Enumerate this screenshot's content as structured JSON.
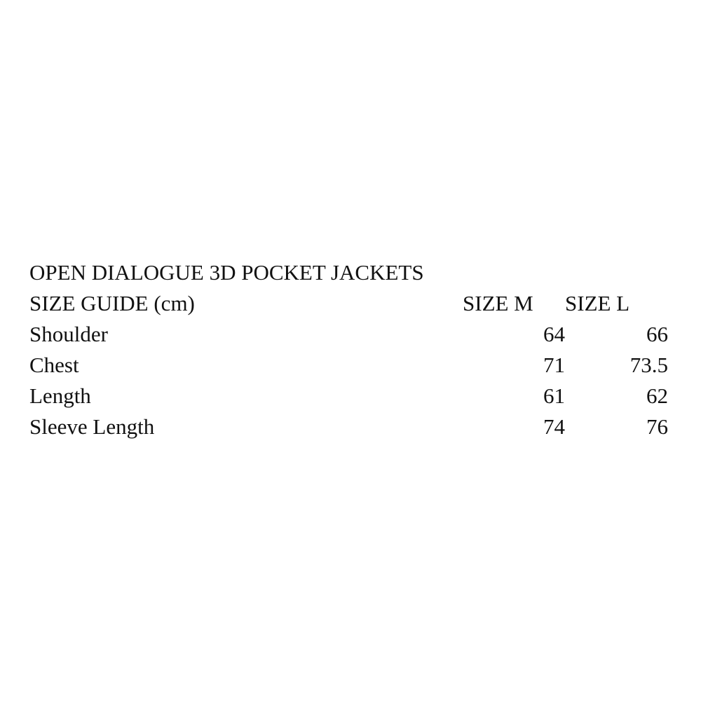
{
  "page": {
    "background_color": "#ffffff",
    "text_color": "#111111"
  },
  "size_guide": {
    "title": "OPEN DIALOGUE 3D POCKET JACKETS",
    "unit_note": "cm",
    "table": {
      "header": {
        "label": "SIZE GUIDE (cm)",
        "columns": [
          "SIZE M",
          "SIZE L"
        ]
      },
      "rows": [
        {
          "label": "Shoulder",
          "size_m": "64",
          "size_l": "66"
        },
        {
          "label": "Chest",
          "size_m": "71",
          "size_l": "73.5"
        },
        {
          "label": "Length",
          "size_m": "61",
          "size_l": "62"
        },
        {
          "label": "Sleeve Length",
          "size_m": "74",
          "size_l": "76"
        }
      ]
    }
  }
}
